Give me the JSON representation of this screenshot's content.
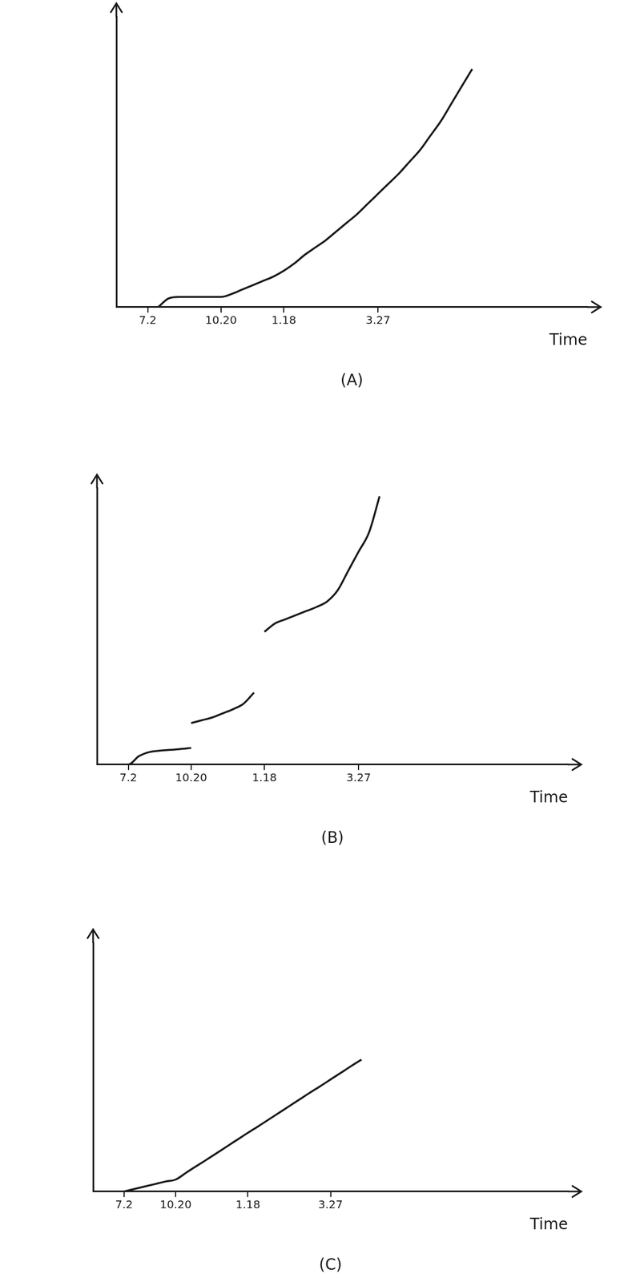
{
  "chart_data": [
    {
      "type": "line",
      "title": "(A)",
      "x_label": "Time",
      "categories": [
        null,
        null,
        null,
        "7.2",
        null,
        null,
        null,
        null,
        null,
        null,
        "10.20",
        null,
        null,
        null,
        null,
        null,
        "1.18",
        null,
        null,
        null,
        null,
        null,
        null,
        null,
        null,
        "3.27",
        null,
        null,
        null,
        null,
        null,
        null,
        null,
        null,
        null,
        null,
        null,
        null,
        null,
        null,
        null,
        null,
        null,
        null,
        null,
        null
      ],
      "series": [
        {
          "color": "#1a1a1a",
          "values": [
            null,
            null,
            null,
            null,
            0,
            3,
            3.5,
            3.5,
            3.5,
            3.5,
            3.5,
            4.5,
            6,
            7.5,
            9,
            10.5,
            12.5,
            15,
            18,
            20.5,
            23,
            26,
            29,
            32,
            35.5,
            39,
            42.5,
            46,
            50,
            54,
            59,
            64,
            70,
            76,
            82,
            null,
            null,
            null,
            null,
            null,
            null,
            null,
            null,
            null,
            null,
            null
          ]
        }
      ],
      "ylim": [
        0,
        100
      ],
      "tick_labels": "x",
      "grid": false
    },
    {
      "type": "line",
      "title": "(B)",
      "x_label": "Time",
      "categories": [
        null,
        null,
        null,
        "7.2",
        null,
        null,
        null,
        null,
        null,
        "10.20",
        null,
        null,
        null,
        null,
        null,
        null,
        "1.18",
        null,
        null,
        null,
        null,
        null,
        null,
        null,
        null,
        "3.27",
        null,
        null,
        null,
        null,
        null,
        null,
        null,
        null,
        null,
        null,
        null,
        null,
        null,
        null,
        null,
        null,
        null,
        null,
        null,
        null
      ],
      "series": [
        {
          "color": "#1a1a1a",
          "values": [
            null,
            null,
            0,
            0,
            3,
            4.5,
            5,
            5.3,
            5.6,
            6,
            null,
            null,
            null,
            null,
            null,
            null,
            null,
            null,
            null,
            null,
            null,
            null,
            null,
            null,
            null,
            null,
            null,
            null,
            null,
            null,
            null,
            null,
            null,
            null,
            null,
            null,
            null,
            null,
            null,
            null,
            null,
            null,
            null,
            null,
            null,
            null
          ]
        },
        {
          "color": "#1a1a1a",
          "values": [
            null,
            null,
            null,
            null,
            null,
            null,
            null,
            null,
            null,
            15,
            16,
            17,
            18.5,
            20,
            22,
            26,
            null,
            null,
            null,
            null,
            null,
            null,
            null,
            null,
            null,
            null,
            null,
            null,
            null,
            null,
            null,
            null,
            null,
            null,
            null,
            null,
            null,
            null,
            null,
            null,
            null,
            null,
            null,
            null,
            null,
            null
          ]
        },
        {
          "color": "#1a1a1a",
          "values": [
            null,
            null,
            null,
            null,
            null,
            null,
            null,
            null,
            null,
            null,
            null,
            null,
            null,
            null,
            null,
            null,
            48,
            51,
            52.5,
            54,
            55.5,
            57,
            59,
            63,
            70,
            77,
            84,
            97,
            null,
            null,
            null,
            null,
            null,
            null,
            null,
            null,
            null,
            null,
            null,
            null,
            null,
            null,
            null,
            null,
            null,
            null
          ]
        }
      ],
      "ylim": [
        0,
        100
      ],
      "tick_labels": "x",
      "grid": false
    },
    {
      "type": "line",
      "title": "(C)",
      "x_label": "Time",
      "categories": [
        null,
        null,
        null,
        "7.2",
        null,
        null,
        null,
        null,
        "10.20",
        null,
        null,
        null,
        null,
        null,
        null,
        "1.18",
        null,
        null,
        null,
        null,
        null,
        null,
        null,
        "3.27",
        null,
        null,
        null,
        null,
        null,
        null,
        null,
        null,
        null,
        null,
        null,
        null,
        null,
        null,
        null,
        null,
        null,
        null,
        null,
        null,
        null,
        null,
        null
      ],
      "series": [
        {
          "color": "#1a1a1a",
          "values": [
            null,
            null,
            null,
            0,
            1,
            2,
            3,
            4,
            4.8,
            7.5,
            10.2,
            12.8,
            15.5,
            18.2,
            20.9,
            23.6,
            26.2,
            28.9,
            31.6,
            34.3,
            37,
            39.7,
            42.3,
            45,
            47.7,
            50.4,
            53,
            null,
            null,
            null,
            null,
            null,
            null,
            null,
            null,
            null,
            null,
            null,
            null,
            null,
            null,
            null,
            null,
            null,
            null,
            null,
            null
          ]
        }
      ],
      "ylim": [
        0,
        100
      ],
      "tick_labels": "x",
      "grid": false
    }
  ]
}
